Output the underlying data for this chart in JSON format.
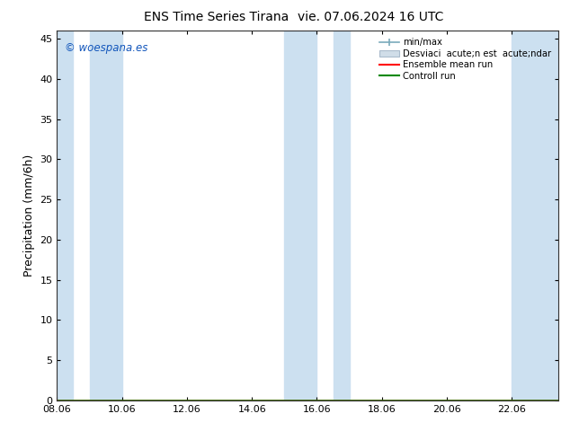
{
  "title": "ENS Time Series Tirana",
  "subtitle": "vie. 07.06.2024 16 UTC",
  "ylabel": "Precipitation (mm/6h)",
  "xlim": [
    8.06,
    23.5
  ],
  "ylim": [
    0,
    46
  ],
  "yticks": [
    0,
    5,
    10,
    15,
    20,
    25,
    30,
    35,
    40,
    45
  ],
  "xticks": [
    8.06,
    10.06,
    12.06,
    14.06,
    16.06,
    18.06,
    20.06,
    22.06
  ],
  "xtick_labels": [
    "08.06",
    "10.06",
    "12.06",
    "14.06",
    "16.06",
    "18.06",
    "20.06",
    "22.06"
  ],
  "shaded_bands": [
    [
      8.06,
      8.56
    ],
    [
      9.06,
      10.06
    ],
    [
      15.06,
      16.06
    ],
    [
      16.56,
      17.06
    ],
    [
      22.06,
      23.5
    ]
  ],
  "band_color_minmax": "#cce0f0",
  "band_color_std": "#ddeaf5",
  "background_color": "#ffffff",
  "title_fontsize": 10,
  "tick_fontsize": 8,
  "ylabel_fontsize": 9,
  "watermark_text": "© woespana.es",
  "watermark_color": "#1155bb",
  "legend_labels": [
    "min/max",
    "Desviaci  acute;n est  acute;ndar",
    "Ensemble mean run",
    "Controll run"
  ],
  "ensemble_mean_color": "#ff0000",
  "control_run_color": "#008800",
  "minmax_line_color": "#5588aa",
  "std_fill_color": "#c8dcea",
  "title_gap": "        "
}
